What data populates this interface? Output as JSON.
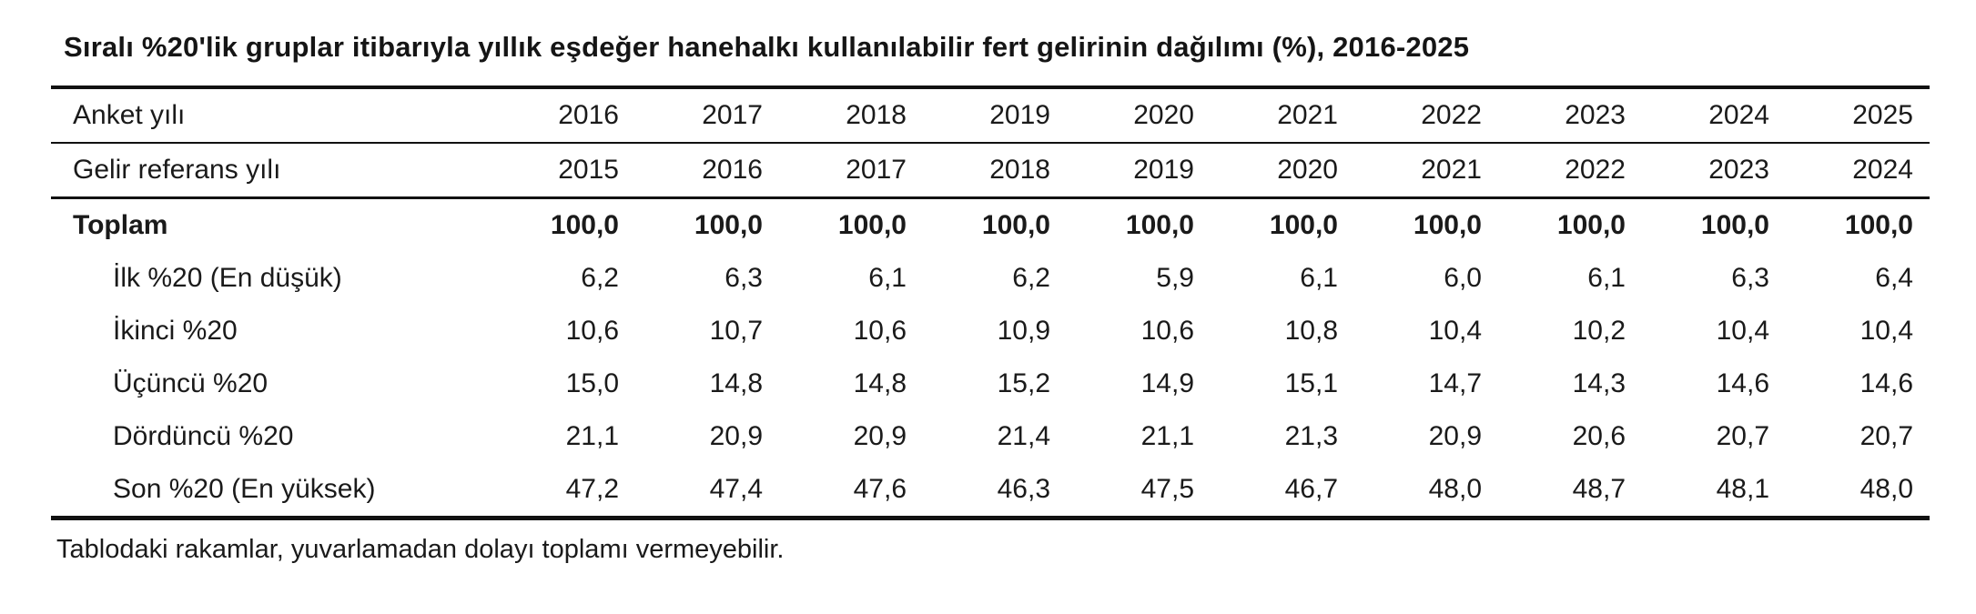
{
  "title": "Sıralı %20'lik gruplar itibarıyla yıllık eşdeğer hanehalkı kullanılabilir fert gelirinin dağılımı (%), 2016-2025",
  "table": {
    "header_rows": [
      {
        "label": "Anket yılı",
        "values": [
          "2016",
          "2017",
          "2018",
          "2019",
          "2020",
          "2021",
          "2022",
          "2023",
          "2024",
          "2025"
        ]
      },
      {
        "label": "Gelir referans yılı",
        "values": [
          "2015",
          "2016",
          "2017",
          "2018",
          "2019",
          "2020",
          "2021",
          "2022",
          "2023",
          "2024"
        ]
      }
    ],
    "body_rows": [
      {
        "label": "Toplam",
        "bold": true,
        "indent": false,
        "values": [
          "100,0",
          "100,0",
          "100,0",
          "100,0",
          "100,0",
          "100,0",
          "100,0",
          "100,0",
          "100,0",
          "100,0"
        ]
      },
      {
        "label": "İlk %20 (En düşük)",
        "bold": false,
        "indent": true,
        "values": [
          "6,2",
          "6,3",
          "6,1",
          "6,2",
          "5,9",
          "6,1",
          "6,0",
          "6,1",
          "6,3",
          "6,4"
        ]
      },
      {
        "label": "İkinci %20",
        "bold": false,
        "indent": true,
        "values": [
          "10,6",
          "10,7",
          "10,6",
          "10,9",
          "10,6",
          "10,8",
          "10,4",
          "10,2",
          "10,4",
          "10,4"
        ]
      },
      {
        "label": "Üçüncü %20",
        "bold": false,
        "indent": true,
        "values": [
          "15,0",
          "14,8",
          "14,8",
          "15,2",
          "14,9",
          "15,1",
          "14,7",
          "14,3",
          "14,6",
          "14,6"
        ]
      },
      {
        "label": "Dördüncü %20",
        "bold": false,
        "indent": true,
        "values": [
          "21,1",
          "20,9",
          "20,9",
          "21,4",
          "21,1",
          "21,3",
          "20,9",
          "20,6",
          "20,7",
          "20,7"
        ]
      },
      {
        "label": "Son %20 (En yüksek)",
        "bold": false,
        "indent": true,
        "values": [
          "47,2",
          "47,4",
          "47,6",
          "46,3",
          "47,5",
          "46,7",
          "48,0",
          "48,7",
          "48,1",
          "48,0"
        ]
      }
    ],
    "footnote": "Tablodaki rakamlar, yuvarlamadan dolayı toplamı vermeyebilir."
  },
  "chart_data": {
    "type": "table",
    "title": "Sıralı %20'lik gruplar itibarıyla yıllık eşdeğer hanehalkı kullanılabilir fert gelirinin dağılımı (%), 2016-2025",
    "categories": [
      2016,
      2017,
      2018,
      2019,
      2020,
      2021,
      2022,
      2023,
      2024,
      2025
    ],
    "categories_label": "Anket yılı",
    "income_reference_years": [
      2015,
      2016,
      2017,
      2018,
      2019,
      2020,
      2021,
      2022,
      2023,
      2024
    ],
    "income_reference_label": "Gelir referans yılı",
    "series": [
      {
        "name": "Toplam",
        "values": [
          100.0,
          100.0,
          100.0,
          100.0,
          100.0,
          100.0,
          100.0,
          100.0,
          100.0,
          100.0
        ]
      },
      {
        "name": "İlk %20 (En düşük)",
        "values": [
          6.2,
          6.3,
          6.1,
          6.2,
          5.9,
          6.1,
          6.0,
          6.1,
          6.3,
          6.4
        ]
      },
      {
        "name": "İkinci %20",
        "values": [
          10.6,
          10.7,
          10.6,
          10.9,
          10.6,
          10.8,
          10.4,
          10.2,
          10.4,
          10.4
        ]
      },
      {
        "name": "Üçüncü %20",
        "values": [
          15.0,
          14.8,
          14.8,
          15.2,
          14.9,
          15.1,
          14.7,
          14.3,
          14.6,
          14.6
        ]
      },
      {
        "name": "Dördüncü %20",
        "values": [
          21.1,
          20.9,
          20.9,
          21.4,
          21.1,
          21.3,
          20.9,
          20.6,
          20.7,
          20.7
        ]
      },
      {
        "name": "Son %20 (En yüksek)",
        "values": [
          47.2,
          47.4,
          47.6,
          46.3,
          47.5,
          46.7,
          48.0,
          48.7,
          48.1,
          48.0
        ]
      }
    ],
    "unit": "%",
    "decimal_separator": ",",
    "footnote": "Tablodaki rakamlar, yuvarlamadan dolayı toplamı vermeyebilir."
  },
  "colors": {
    "background": "#ffffff",
    "text": "#1a1a1a",
    "border": "#111111"
  }
}
